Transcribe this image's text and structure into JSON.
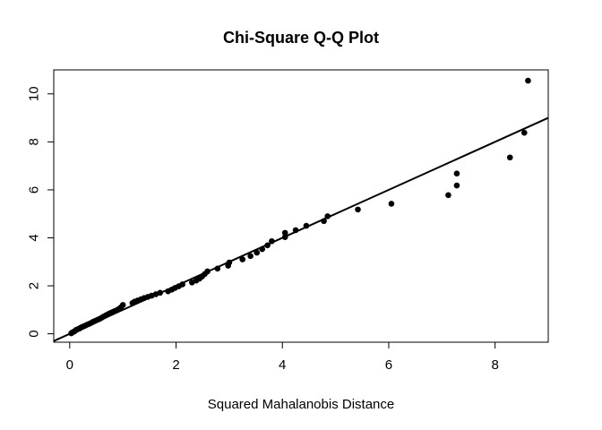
{
  "chart_data": {
    "type": "scatter",
    "title": "Chi-Square Q-Q Plot",
    "xlabel": "Squared Mahalanobis Distance",
    "ylabel": "",
    "xlim": [
      -0.3,
      9.0
    ],
    "ylim": [
      -0.35,
      11.0
    ],
    "xticks": [
      0,
      2,
      4,
      6,
      8
    ],
    "yticks": [
      0,
      2,
      4,
      6,
      8,
      10
    ],
    "grid": false,
    "legend": "none",
    "colors": {
      "points": "#000000",
      "line": "#000000",
      "box": "#000000"
    },
    "reference_line": {
      "intercept": 0.0,
      "slope": 1.0
    },
    "points": [
      {
        "x": 0.03,
        "y": 0.02
      },
      {
        "x": 0.05,
        "y": 0.06
      },
      {
        "x": 0.08,
        "y": 0.09
      },
      {
        "x": 0.1,
        "y": 0.12
      },
      {
        "x": 0.12,
        "y": 0.16
      },
      {
        "x": 0.15,
        "y": 0.19
      },
      {
        "x": 0.18,
        "y": 0.22
      },
      {
        "x": 0.21,
        "y": 0.26
      },
      {
        "x": 0.24,
        "y": 0.29
      },
      {
        "x": 0.28,
        "y": 0.33
      },
      {
        "x": 0.32,
        "y": 0.37
      },
      {
        "x": 0.36,
        "y": 0.41
      },
      {
        "x": 0.4,
        "y": 0.45
      },
      {
        "x": 0.44,
        "y": 0.5
      },
      {
        "x": 0.48,
        "y": 0.54
      },
      {
        "x": 0.52,
        "y": 0.58
      },
      {
        "x": 0.56,
        "y": 0.62
      },
      {
        "x": 0.6,
        "y": 0.67
      },
      {
        "x": 0.64,
        "y": 0.72
      },
      {
        "x": 0.68,
        "y": 0.77
      },
      {
        "x": 0.72,
        "y": 0.82
      },
      {
        "x": 0.76,
        "y": 0.86
      },
      {
        "x": 0.8,
        "y": 0.9
      },
      {
        "x": 0.84,
        "y": 0.94
      },
      {
        "x": 0.88,
        "y": 0.98
      },
      {
        "x": 0.92,
        "y": 1.03
      },
      {
        "x": 0.96,
        "y": 1.1
      },
      {
        "x": 1.0,
        "y": 1.2
      },
      {
        "x": 1.18,
        "y": 1.28
      },
      {
        "x": 1.22,
        "y": 1.34
      },
      {
        "x": 1.28,
        "y": 1.39
      },
      {
        "x": 1.34,
        "y": 1.44
      },
      {
        "x": 1.4,
        "y": 1.49
      },
      {
        "x": 1.47,
        "y": 1.54
      },
      {
        "x": 1.54,
        "y": 1.59
      },
      {
        "x": 1.62,
        "y": 1.65
      },
      {
        "x": 1.7,
        "y": 1.71
      },
      {
        "x": 1.85,
        "y": 1.77
      },
      {
        "x": 1.92,
        "y": 1.84
      },
      {
        "x": 1.98,
        "y": 1.91
      },
      {
        "x": 2.05,
        "y": 1.98
      },
      {
        "x": 2.12,
        "y": 2.06
      },
      {
        "x": 2.3,
        "y": 2.14
      },
      {
        "x": 2.38,
        "y": 2.22
      },
      {
        "x": 2.44,
        "y": 2.3
      },
      {
        "x": 2.49,
        "y": 2.39
      },
      {
        "x": 2.54,
        "y": 2.49
      },
      {
        "x": 2.59,
        "y": 2.6
      },
      {
        "x": 2.78,
        "y": 2.72
      },
      {
        "x": 2.98,
        "y": 2.84
      },
      {
        "x": 3.0,
        "y": 2.97
      },
      {
        "x": 3.25,
        "y": 3.1
      },
      {
        "x": 3.4,
        "y": 3.24
      },
      {
        "x": 3.52,
        "y": 3.38
      },
      {
        "x": 3.62,
        "y": 3.53
      },
      {
        "x": 3.72,
        "y": 3.69
      },
      {
        "x": 3.8,
        "y": 3.86
      },
      {
        "x": 4.05,
        "y": 4.03
      },
      {
        "x": 4.05,
        "y": 4.21
      },
      {
        "x": 4.25,
        "y": 4.32
      },
      {
        "x": 4.45,
        "y": 4.5
      },
      {
        "x": 4.78,
        "y": 4.7
      },
      {
        "x": 4.85,
        "y": 4.9
      },
      {
        "x": 5.42,
        "y": 5.18
      },
      {
        "x": 6.05,
        "y": 5.42
      },
      {
        "x": 7.12,
        "y": 5.78
      },
      {
        "x": 7.28,
        "y": 6.18
      },
      {
        "x": 7.28,
        "y": 6.68
      },
      {
        "x": 8.28,
        "y": 7.35
      },
      {
        "x": 8.55,
        "y": 8.38
      },
      {
        "x": 8.62,
        "y": 10.55
      }
    ]
  }
}
